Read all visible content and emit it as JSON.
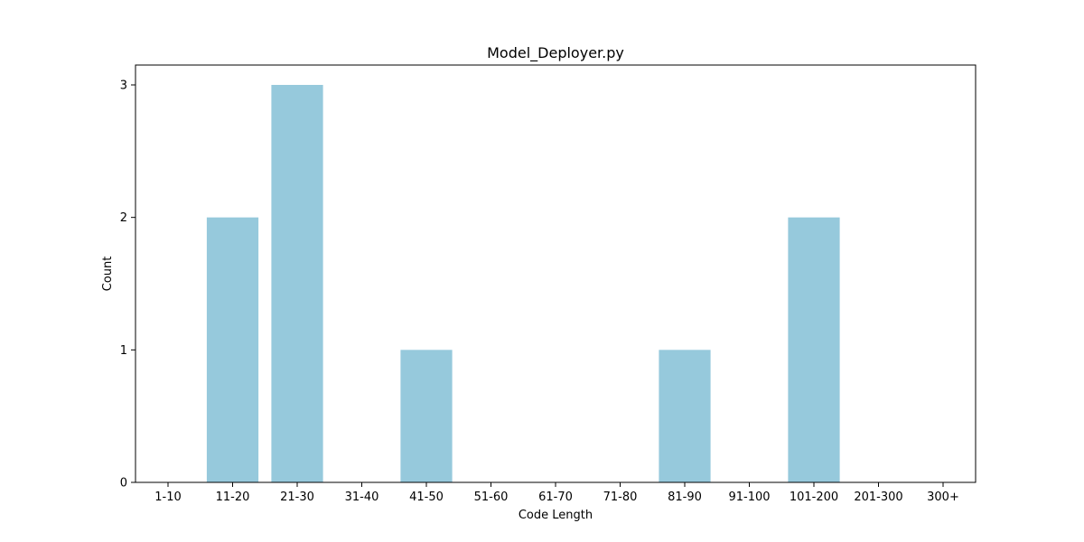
{
  "chart_data": {
    "type": "bar",
    "title": "Model_Deployer.py",
    "xlabel": "Code Length",
    "ylabel": "Count",
    "categories": [
      "1-10",
      "11-20",
      "21-30",
      "31-40",
      "41-50",
      "51-60",
      "61-70",
      "71-80",
      "81-90",
      "91-100",
      "101-200",
      "201-300",
      "300+"
    ],
    "values": [
      0,
      2,
      3,
      0,
      1,
      0,
      0,
      0,
      1,
      0,
      2,
      0,
      0
    ],
    "ylim": [
      0,
      3.15
    ],
    "yticks": [
      "0",
      "1",
      "2",
      "3"
    ],
    "grid": false,
    "legend": "none",
    "bar_color": "#96c9dc"
  }
}
